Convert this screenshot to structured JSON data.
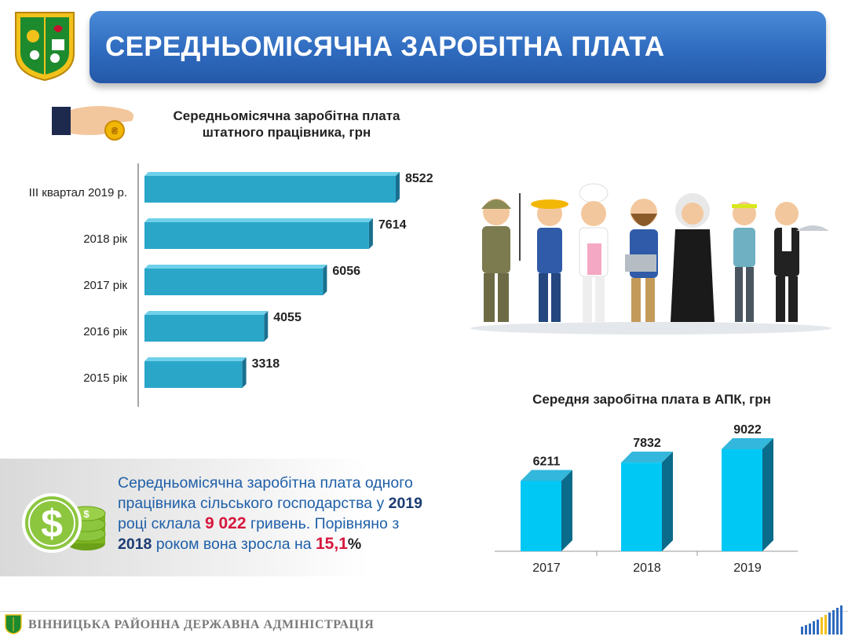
{
  "header": {
    "title": "СЕРЕДНЬОМІСЯЧНА ЗАРОБІТНА ПЛАТА"
  },
  "icons": {
    "coat_of_arms": "coat-of-arms-icon",
    "hand_coin": "hand-coin-icon",
    "money_stack": "dollar-coins-icon",
    "people": "professions-illustration",
    "footer_bars": "bar-graph-logo-icon"
  },
  "colors": {
    "banner": "#2f6bbf",
    "bar_front": "#2aa6c9",
    "bar_top": "#6fd0ea",
    "bar_dark": "#1a6f8f",
    "apk_front": "#00c8f5",
    "apk_top": "#33b7dc",
    "apk_side": "#0a6b8a",
    "highlight_red": "#d6183e",
    "text_blue": "#1f5fa8"
  },
  "chart_data": [
    {
      "type": "bar",
      "orientation": "horizontal",
      "title": "Середньомісячна заробітна плата штатного працівника, грн",
      "title_lines": [
        "Середньомісячна заробітна плата",
        "штатного працівника, грн"
      ],
      "categories": [
        "ІІІ квартал 2019 р.",
        "2018 рік",
        "2017 рік",
        "2016 рік",
        "2015 рік"
      ],
      "values": [
        8522,
        7614,
        6056,
        4055,
        3318
      ],
      "value_labels": [
        "8522",
        "7614",
        "6056",
        "4055",
        "3318"
      ],
      "xlim": [
        0,
        8522
      ],
      "grid": false,
      "legend": "none"
    },
    {
      "type": "bar",
      "orientation": "vertical",
      "title": "Середня заробітна плата в АПК, грн",
      "categories": [
        "2017",
        "2018",
        "2019"
      ],
      "values": [
        6211,
        7832,
        9022
      ],
      "value_labels": [
        "6211",
        "7832",
        "9022"
      ],
      "ylim": [
        0,
        9022
      ],
      "grid": false,
      "legend": "none"
    }
  ],
  "info": {
    "line1": "Середньомісячна заробітна плата одного",
    "line2_a": "працівника сільського господарства у ",
    "line2_year": "2019",
    "line3_a": "році склала ",
    "line3_amount": "9 022",
    "line3_b": " гривень. Порівняно з",
    "line4_year": "2018",
    "line4_a": " роком вона зросла на ",
    "line4_pct_num": "15,1",
    "line4_pct_sign": "%"
  },
  "footer": {
    "text": "ВІННИЦЬКА РАЙОННА ДЕРЖАВНА АДМІНІСТРАЦІЯ"
  }
}
